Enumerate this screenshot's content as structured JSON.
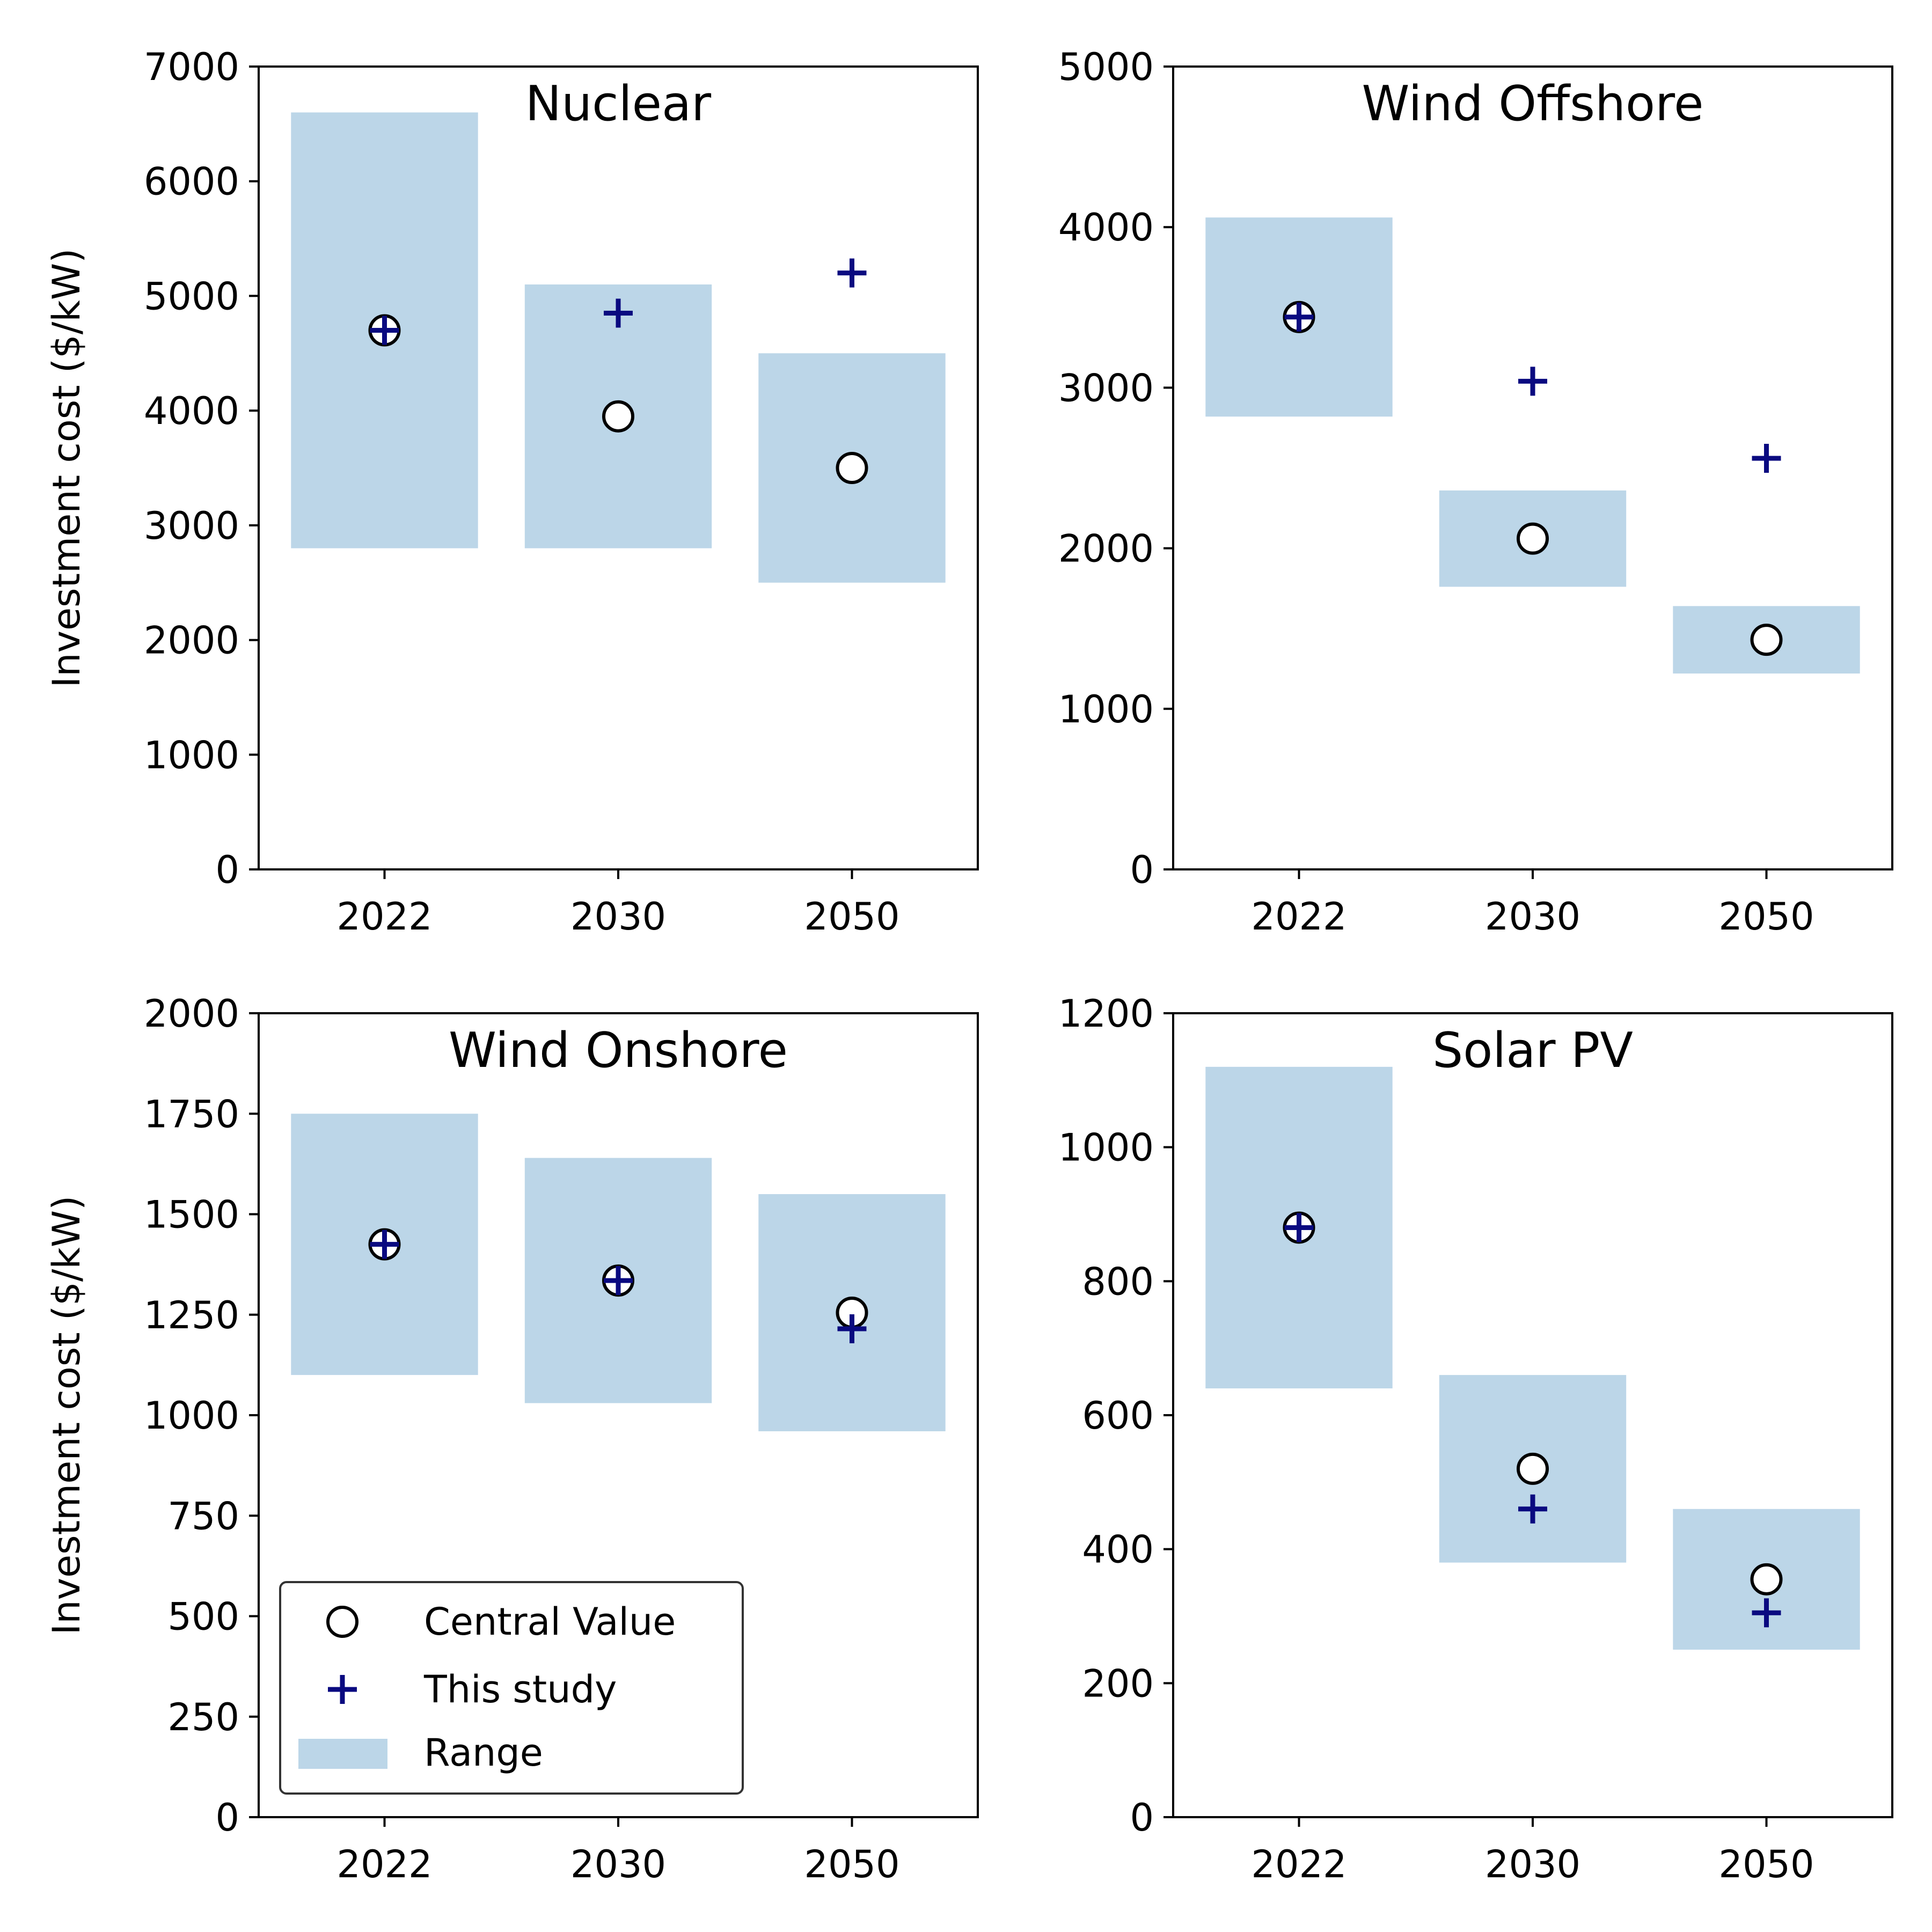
{
  "colors": {
    "range": "#bcd6e8",
    "this_study": "#0a0a80",
    "central_edge": "#000000",
    "central_face": "#ffffff",
    "axes": "#000000"
  },
  "legend": {
    "central": "Central Value",
    "study": "This study",
    "range": "Range"
  },
  "chart_data": [
    {
      "type": "scatter",
      "title": "Nuclear",
      "ylabel": "Investment cost ($/kW)",
      "categories": [
        "2022",
        "2030",
        "2050"
      ],
      "ylim": [
        0,
        7000
      ],
      "yticks": [
        0,
        1000,
        2000,
        3000,
        4000,
        5000,
        6000,
        7000
      ],
      "range_low": [
        2800,
        2800,
        2500
      ],
      "range_high": [
        6600,
        5100,
        4500
      ],
      "central": [
        4700,
        3950,
        3500
      ],
      "this_study": [
        4700,
        4850,
        5200
      ]
    },
    {
      "type": "scatter",
      "title": "Wind Offshore",
      "ylabel": "",
      "categories": [
        "2022",
        "2030",
        "2050"
      ],
      "ylim": [
        0,
        5000
      ],
      "yticks": [
        0,
        1000,
        2000,
        3000,
        4000,
        5000
      ],
      "range_low": [
        2820,
        1760,
        1220
      ],
      "range_high": [
        4060,
        2360,
        1640
      ],
      "central": [
        3440,
        2060,
        1430
      ],
      "this_study": [
        3440,
        3040,
        2560
      ]
    },
    {
      "type": "scatter",
      "title": "Wind Onshore",
      "ylabel": "Investment cost ($/kW)",
      "categories": [
        "2022",
        "2030",
        "2050"
      ],
      "ylim": [
        0,
        2000
      ],
      "yticks": [
        0,
        250,
        500,
        750,
        1000,
        1250,
        1500,
        1750,
        2000
      ],
      "range_low": [
        1100,
        1030,
        960
      ],
      "range_high": [
        1750,
        1640,
        1550
      ],
      "central": [
        1425,
        1335,
        1255
      ],
      "this_study": [
        1425,
        1335,
        1215
      ],
      "legend": "lower-left"
    },
    {
      "type": "scatter",
      "title": "Solar PV",
      "ylabel": "",
      "categories": [
        "2022",
        "2030",
        "2050"
      ],
      "ylim": [
        0,
        1200
      ],
      "yticks": [
        0,
        200,
        400,
        600,
        800,
        1000,
        1200
      ],
      "range_low": [
        640,
        380,
        250
      ],
      "range_high": [
        1120,
        660,
        460
      ],
      "central": [
        880,
        520,
        355
      ],
      "this_study": [
        880,
        460,
        305
      ]
    }
  ]
}
